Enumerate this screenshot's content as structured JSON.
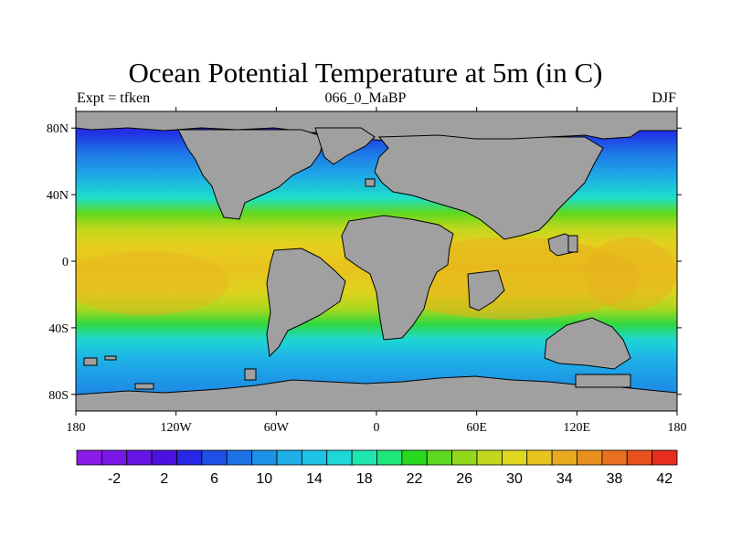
{
  "title": "Ocean Potential Temperature at 5m (in C)",
  "subtitle_left": "Expt = tfken",
  "subtitle_center": "066_0_MaBP",
  "subtitle_right": "DJF",
  "axes": {
    "x_ticks": [
      {
        "value": -180,
        "label": "180"
      },
      {
        "value": -120,
        "label": "120W"
      },
      {
        "value": -60,
        "label": "60W"
      },
      {
        "value": 0,
        "label": "0"
      },
      {
        "value": 60,
        "label": "60E"
      },
      {
        "value": 120,
        "label": "120E"
      },
      {
        "value": 180,
        "label": "180"
      }
    ],
    "y_ticks": [
      {
        "value": 80,
        "label": "80N"
      },
      {
        "value": 40,
        "label": "40N"
      },
      {
        "value": 0,
        "label": "0"
      },
      {
        "value": -40,
        "label": "40S"
      },
      {
        "value": -80,
        "label": "80S"
      }
    ],
    "lon_range": [
      -180,
      180
    ],
    "lat_range": [
      -90,
      90
    ]
  },
  "colorbar": {
    "levels": [
      -2,
      2,
      6,
      10,
      14,
      18,
      22,
      26,
      30,
      34,
      38,
      42
    ],
    "colors": [
      "#8a1ae6",
      "#7817e6",
      "#6414e3",
      "#4c10e0",
      "#2727e6",
      "#1e50e6",
      "#1e72e6",
      "#1e92e6",
      "#1eafe6",
      "#1ec3e6",
      "#1ed8d8",
      "#1ee6b0",
      "#1ee67a",
      "#2ad81e",
      "#5ed81e",
      "#94d81e",
      "#c2d81e",
      "#e0d81e",
      "#e8c41e",
      "#e8aa1e",
      "#e8901e",
      "#e8701e",
      "#e8501e",
      "#e82d1e"
    ],
    "labels": [
      "-2",
      "2",
      "6",
      "10",
      "14",
      "18",
      "22",
      "26",
      "30",
      "34",
      "38",
      "42"
    ]
  },
  "land_color": "#a0a0a0"
}
